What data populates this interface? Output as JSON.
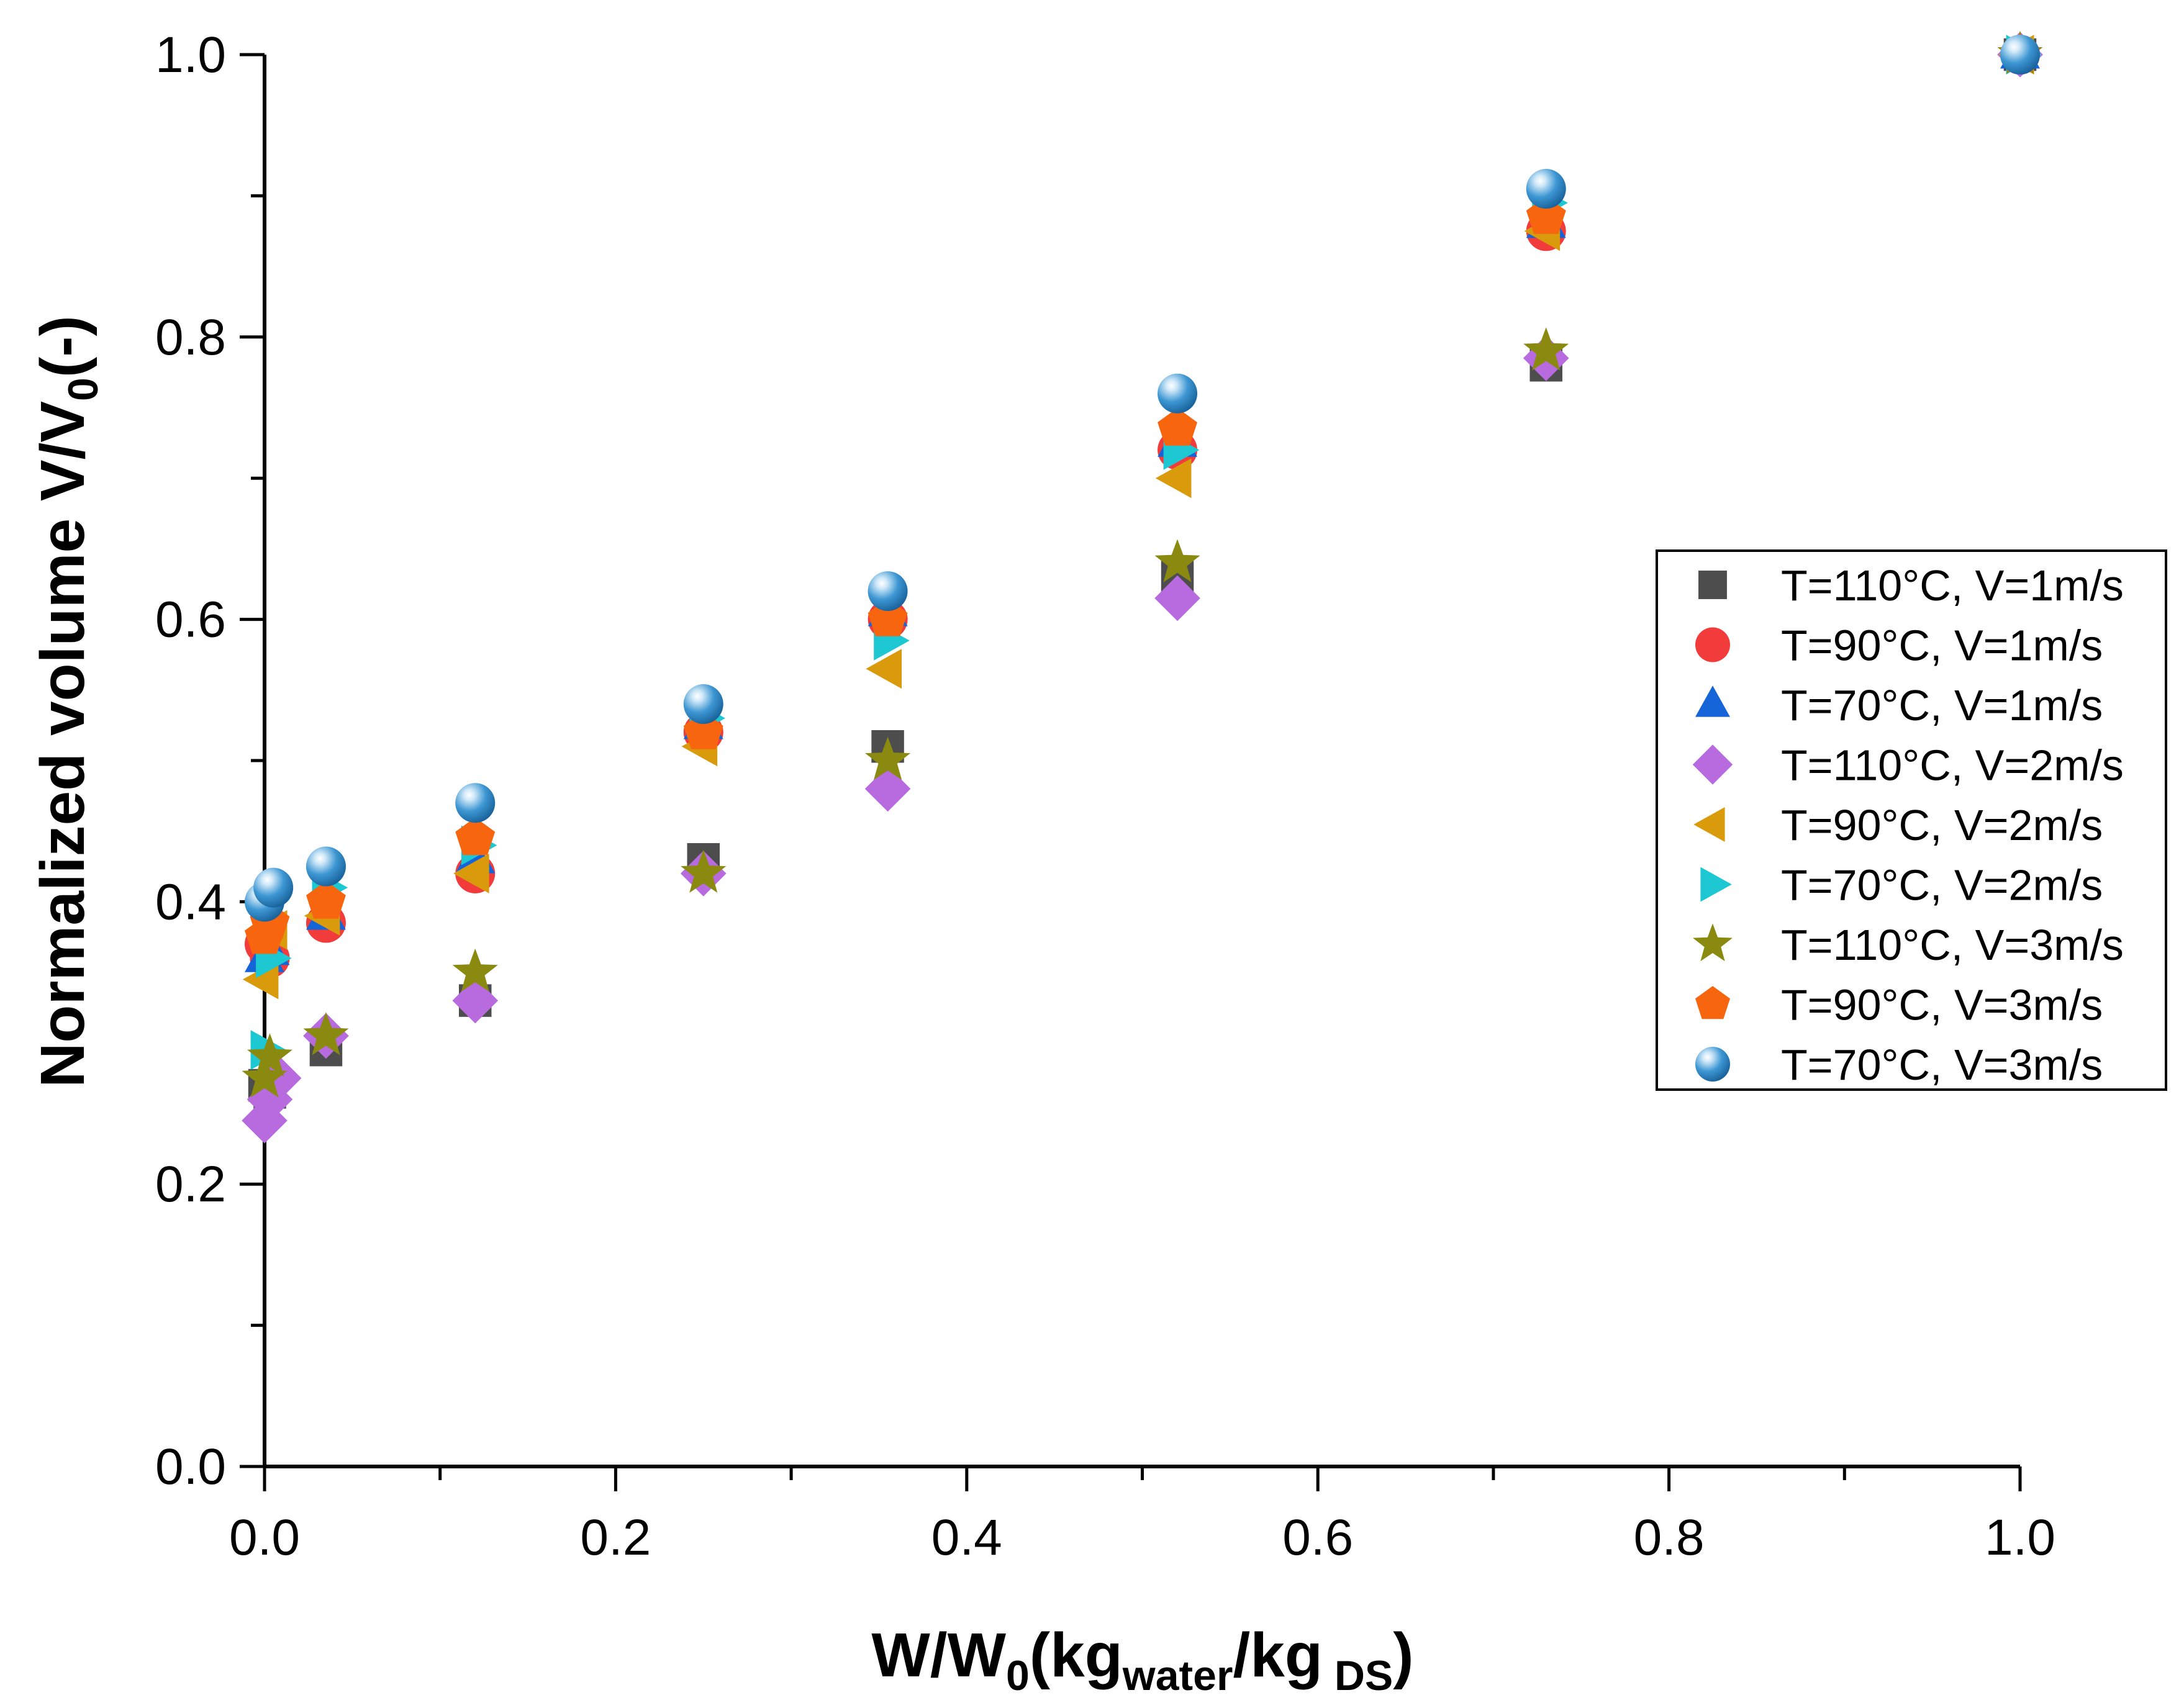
{
  "chart_data": {
    "type": "scatter",
    "title": "",
    "xlabel": {
      "main": "W/W",
      "sub0": "0",
      "mid": "(kg",
      "sub1": "water",
      "mid2": "/kg",
      "sub2": " DS",
      "end": ")"
    },
    "ylabel": {
      "main": "Normalized volume V/V",
      "sub": "0",
      "end": "(-)"
    },
    "xlim": [
      0,
      1.0
    ],
    "ylim": [
      0,
      1.0
    ],
    "xticks": [
      "0.0",
      "0.2",
      "0.4",
      "0.6",
      "0.8",
      "1.0"
    ],
    "yticks": [
      "0.0",
      "0.2",
      "0.4",
      "0.6",
      "0.8",
      "1.0"
    ],
    "grid": false,
    "legend_position": "right",
    "series": [
      {
        "name": "T=110°C, V=1m/s",
        "marker": "square",
        "color": "#4d4d4d",
        "points": [
          [
            0.0,
            0.27
          ],
          [
            0.003,
            0.265
          ],
          [
            0.035,
            0.295
          ],
          [
            0.12,
            0.33
          ],
          [
            0.25,
            0.43
          ],
          [
            0.355,
            0.51
          ],
          [
            0.52,
            0.63
          ],
          [
            0.73,
            0.78
          ],
          [
            1.0,
            1.0
          ]
        ]
      },
      {
        "name": "T=90°C, V=1m/s",
        "marker": "circle",
        "color": "#f23b3b",
        "points": [
          [
            0.0,
            0.37
          ],
          [
            0.003,
            0.36
          ],
          [
            0.035,
            0.385
          ],
          [
            0.12,
            0.42
          ],
          [
            0.25,
            0.52
          ],
          [
            0.355,
            0.6
          ],
          [
            0.52,
            0.72
          ],
          [
            0.73,
            0.875
          ],
          [
            1.0,
            1.0
          ]
        ]
      },
      {
        "name": "T=70°C, V=1m/s",
        "marker": "triangle-up",
        "color": "#1565d8",
        "points": [
          [
            0.0,
            0.36
          ],
          [
            0.003,
            0.365
          ],
          [
            0.035,
            0.39
          ],
          [
            0.12,
            0.43
          ],
          [
            0.25,
            0.525
          ],
          [
            0.355,
            0.605
          ],
          [
            0.52,
            0.725
          ],
          [
            0.73,
            0.88
          ],
          [
            1.0,
            1.0
          ]
        ]
      },
      {
        "name": "T=110°C, V=2m/s",
        "marker": "diamond",
        "color": "#b86adf",
        "points": [
          [
            0.0,
            0.245
          ],
          [
            0.003,
            0.26
          ],
          [
            0.008,
            0.275
          ],
          [
            0.035,
            0.305
          ],
          [
            0.12,
            0.33
          ],
          [
            0.25,
            0.42
          ],
          [
            0.355,
            0.48
          ],
          [
            0.52,
            0.615
          ],
          [
            0.73,
            0.785
          ],
          [
            1.0,
            1.0
          ]
        ]
      },
      {
        "name": "T=90°C, V=2m/s",
        "marker": "triangle-left",
        "color": "#d99a0b",
        "points": [
          [
            0.0,
            0.345
          ],
          [
            0.005,
            0.38
          ],
          [
            0.035,
            0.39
          ],
          [
            0.12,
            0.42
          ],
          [
            0.25,
            0.51
          ],
          [
            0.355,
            0.565
          ],
          [
            0.52,
            0.7
          ],
          [
            0.73,
            0.875
          ],
          [
            1.0,
            1.0
          ]
        ]
      },
      {
        "name": "T=70°C, V=2m/s",
        "marker": "triangle-right",
        "color": "#1ec8d2",
        "points": [
          [
            0.0,
            0.295
          ],
          [
            0.003,
            0.36
          ],
          [
            0.035,
            0.41
          ],
          [
            0.12,
            0.44
          ],
          [
            0.25,
            0.53
          ],
          [
            0.355,
            0.585
          ],
          [
            0.52,
            0.72
          ],
          [
            0.73,
            0.895
          ],
          [
            1.0,
            1.0
          ]
        ]
      },
      {
        "name": "T=110°C, V=3m/s",
        "marker": "star",
        "color": "#8a8a10",
        "points": [
          [
            0.0,
            0.275
          ],
          [
            0.003,
            0.29
          ],
          [
            0.035,
            0.305
          ],
          [
            0.12,
            0.35
          ],
          [
            0.25,
            0.42
          ],
          [
            0.355,
            0.5
          ],
          [
            0.52,
            0.64
          ],
          [
            0.73,
            0.79
          ],
          [
            1.0,
            1.0
          ]
        ]
      },
      {
        "name": "T=90°C, V=3m/s",
        "marker": "pentagon",
        "color": "#f7650f",
        "points": [
          [
            0.0,
            0.375
          ],
          [
            0.003,
            0.385
          ],
          [
            0.035,
            0.4
          ],
          [
            0.12,
            0.445
          ],
          [
            0.25,
            0.52
          ],
          [
            0.355,
            0.6
          ],
          [
            0.52,
            0.735
          ],
          [
            0.73,
            0.885
          ],
          [
            1.0,
            1.0
          ]
        ]
      },
      {
        "name": "T=70°C, V=3m/s",
        "marker": "sphere",
        "color": "#3d97d3",
        "points": [
          [
            0.0,
            0.4
          ],
          [
            0.005,
            0.41
          ],
          [
            0.035,
            0.425
          ],
          [
            0.12,
            0.47
          ],
          [
            0.25,
            0.54
          ],
          [
            0.355,
            0.62
          ],
          [
            0.52,
            0.76
          ],
          [
            0.73,
            0.905
          ],
          [
            1.0,
            1.0
          ]
        ]
      }
    ]
  }
}
